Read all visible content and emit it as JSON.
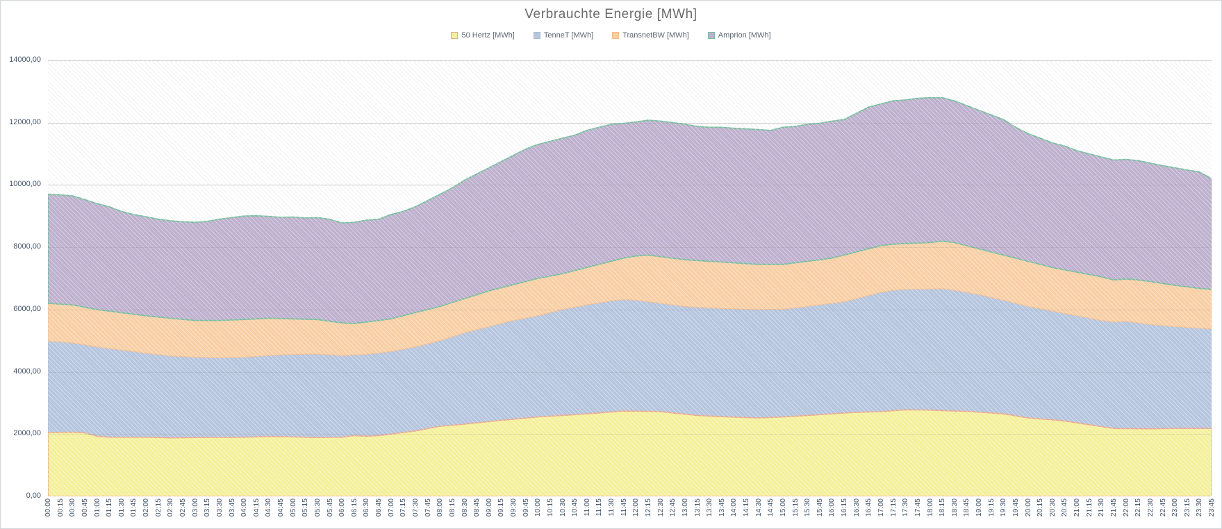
{
  "chart": {
    "title": "Verbrauchte Energie [MWh]",
    "title_color": "#6b6b6b",
    "axis_text_color": "#44546a",
    "gridline_color": "#d8d8d8",
    "background_hatch_color": "#e9e9e9"
  },
  "chart_data": {
    "type": "area",
    "stacked": true,
    "title": "Verbrauchte Energie [MWh]",
    "xlabel": "",
    "ylabel": "",
    "ylim": [
      0,
      14000
    ],
    "y_tick_step": 2000,
    "y_tick_labels": [
      "0,00",
      "2000,00",
      "4000,00",
      "6000,00",
      "8000,00",
      "10000,00",
      "12000,00",
      "14000,00"
    ],
    "grid": "horizontal",
    "legend_position": "top",
    "x_tick_rotation_deg": -90,
    "categories": [
      "00:00",
      "00:15",
      "00:30",
      "00:45",
      "01:00",
      "01:15",
      "01:30",
      "01:45",
      "02:00",
      "02:15",
      "02:30",
      "02:45",
      "03:00",
      "03:15",
      "03:30",
      "03:45",
      "04:00",
      "04:15",
      "04:30",
      "04:45",
      "05:00",
      "05:15",
      "05:30",
      "05:45",
      "06:00",
      "06:15",
      "06:30",
      "06:45",
      "07:00",
      "07:15",
      "07:30",
      "07:45",
      "08:00",
      "08:15",
      "08:30",
      "08:45",
      "09:00",
      "09:15",
      "09:30",
      "09:45",
      "10:00",
      "10:15",
      "10:30",
      "10:45",
      "11:00",
      "11:15",
      "11:30",
      "11:45",
      "12:00",
      "12:15",
      "12:30",
      "12:45",
      "13:00",
      "13:15",
      "13:30",
      "13:45",
      "14:00",
      "14:15",
      "14:30",
      "14:45",
      "15:00",
      "15:15",
      "15:30",
      "15:45",
      "16:00",
      "16:15",
      "16:30",
      "16:45",
      "17:00",
      "17:15",
      "17:30",
      "17:45",
      "18:00",
      "18:15",
      "18:30",
      "18:45",
      "19:00",
      "19:15",
      "19:30",
      "19:45",
      "20:00",
      "20:15",
      "20:30",
      "20:45",
      "21:00",
      "21:15",
      "21:30",
      "21:45",
      "22:00",
      "22:15",
      "22:30",
      "22:45",
      "23:00",
      "23:15",
      "23:30",
      "23:45"
    ],
    "series": [
      {
        "name": "50 Hertz [MWh]",
        "fill": "#f4f09b",
        "stroke": "#e9a78e",
        "values": [
          2050,
          2055,
          2060,
          2040,
          1930,
          1900,
          1900,
          1900,
          1900,
          1890,
          1880,
          1885,
          1890,
          1892,
          1895,
          1898,
          1900,
          1910,
          1920,
          1915,
          1910,
          1900,
          1890,
          1895,
          1900,
          1950,
          1930,
          1950,
          2000,
          2050,
          2100,
          2175,
          2250,
          2285,
          2320,
          2360,
          2400,
          2440,
          2475,
          2515,
          2550,
          2575,
          2600,
          2625,
          2650,
          2680,
          2710,
          2740,
          2735,
          2730,
          2720,
          2680,
          2640,
          2600,
          2580,
          2560,
          2545,
          2530,
          2520,
          2535,
          2550,
          2575,
          2600,
          2625,
          2650,
          2675,
          2700,
          2710,
          2720,
          2750,
          2780,
          2775,
          2770,
          2755,
          2740,
          2730,
          2705,
          2680,
          2650,
          2585,
          2520,
          2490,
          2460,
          2420,
          2360,
          2300,
          2240,
          2180,
          2175,
          2172,
          2170,
          2175,
          2180,
          2180,
          2180,
          2180
        ]
      },
      {
        "name": "TenneT [MWh]",
        "fill": "#b5c5de",
        "stroke": "#a9bbd6",
        "values": [
          2940,
          2905,
          2870,
          2825,
          2870,
          2850,
          2800,
          2750,
          2700,
          2665,
          2630,
          2605,
          2580,
          2568,
          2555,
          2562,
          2570,
          2585,
          2600,
          2625,
          2650,
          2665,
          2680,
          2650,
          2620,
          2590,
          2630,
          2655,
          2650,
          2675,
          2700,
          2725,
          2750,
          2840,
          2930,
          2990,
          3050,
          3110,
          3175,
          3210,
          3250,
          3325,
          3400,
          3450,
          3500,
          3535,
          3570,
          3580,
          3565,
          3520,
          3480,
          3470,
          3460,
          3475,
          3470,
          3475,
          3475,
          3480,
          3480,
          3470,
          3460,
          3480,
          3500,
          3525,
          3550,
          3575,
          3650,
          3740,
          3830,
          3870,
          3870,
          3880,
          3890,
          3915,
          3880,
          3820,
          3775,
          3710,
          3650,
          3615,
          3580,
          3535,
          3490,
          3455,
          3440,
          3425,
          3410,
          3420,
          3445,
          3398,
          3350,
          3310,
          3270,
          3245,
          3220,
          3200
        ]
      },
      {
        "name": "TransnetBW [MWh]",
        "fill": "#f8cea4",
        "stroke": "#f1bc90",
        "values": [
          1210,
          1215,
          1220,
          1210,
          1200,
          1200,
          1200,
          1200,
          1200,
          1205,
          1210,
          1195,
          1180,
          1190,
          1200,
          1205,
          1210,
          1205,
          1200,
          1170,
          1140,
          1125,
          1110,
          1080,
          1050,
          1010,
          1040,
          1045,
          1050,
          1075,
          1100,
          1100,
          1100,
          1100,
          1100,
          1125,
          1150,
          1150,
          1150,
          1175,
          1200,
          1175,
          1150,
          1175,
          1200,
          1235,
          1270,
          1330,
          1420,
          1500,
          1500,
          1500,
          1500,
          1500,
          1500,
          1490,
          1480,
          1465,
          1450,
          1445,
          1440,
          1445,
          1450,
          1450,
          1450,
          1500,
          1500,
          1500,
          1500,
          1480,
          1470,
          1480,
          1490,
          1530,
          1530,
          1500,
          1470,
          1460,
          1450,
          1450,
          1450,
          1425,
          1400,
          1400,
          1400,
          1400,
          1400,
          1350,
          1360,
          1380,
          1380,
          1355,
          1330,
          1305,
          1280,
          1270
        ]
      },
      {
        "name": "Amprion [MWh]",
        "fill": "#beb0ce",
        "stroke": "#7abc9f",
        "values": [
          3500,
          3505,
          3500,
          3455,
          3400,
          3350,
          3250,
          3200,
          3180,
          3140,
          3130,
          3135,
          3150,
          3180,
          3250,
          3285,
          3320,
          3310,
          3270,
          3250,
          3270,
          3250,
          3270,
          3275,
          3210,
          3250,
          3270,
          3250,
          3350,
          3350,
          3400,
          3500,
          3600,
          3675,
          3800,
          3875,
          3950,
          4050,
          4150,
          4250,
          4300,
          4325,
          4350,
          4350,
          4400,
          4400,
          4400,
          4330,
          4300,
          4330,
          4350,
          4350,
          4350,
          4305,
          4300,
          4325,
          4320,
          4325,
          4330,
          4300,
          4400,
          4380,
          4400,
          4380,
          4400,
          4350,
          4450,
          4550,
          4550,
          4600,
          4610,
          4645,
          4650,
          4600,
          4550,
          4500,
          4450,
          4400,
          4350,
          4200,
          4100,
          4050,
          4000,
          3975,
          3900,
          3875,
          3850,
          3850,
          3840,
          3830,
          3800,
          3780,
          3770,
          3750,
          3740,
          3550
        ]
      }
    ]
  }
}
